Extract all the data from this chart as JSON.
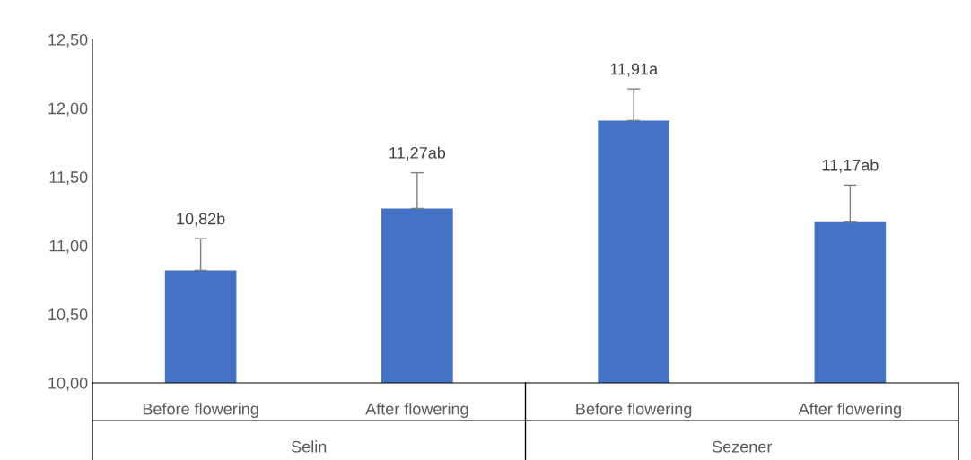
{
  "chart_data": {
    "type": "bar",
    "categories": [
      "Before flowering",
      "After flowering",
      "Before flowering",
      "After flowering"
    ],
    "values": [
      10.82,
      11.27,
      11.91,
      11.17
    ],
    "value_labels": [
      "10,82b",
      "11,27ab",
      "11,91a",
      "11,17ab"
    ],
    "errors": [
      [
        10.82,
        11.05
      ],
      [
        11.27,
        11.53
      ],
      [
        11.91,
        12.14
      ],
      [
        11.17,
        11.44
      ]
    ],
    "color": "#4472c4",
    "ylim": [
      10,
      12.5
    ],
    "yticks": [
      {
        "value": 10,
        "label": "10,00"
      },
      {
        "value": 10.5,
        "label": "10,50"
      },
      {
        "value": 11,
        "label": "11,00"
      },
      {
        "value": 11.5,
        "label": "11,50"
      },
      {
        "value": 12,
        "label": "12,00"
      },
      {
        "value": 12.5,
        "label": "12,50"
      }
    ],
    "annotations": [
      "Selin",
      "Sezener"
    ],
    "grid": false,
    "legend": false
  }
}
